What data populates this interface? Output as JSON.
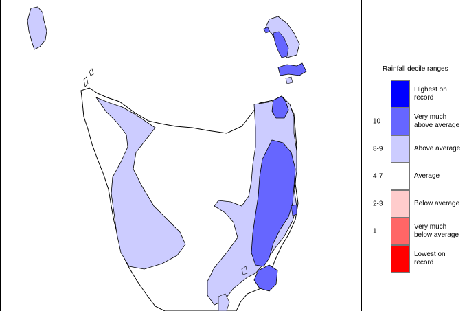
{
  "legend": {
    "title": "Rainfall decile ranges",
    "items": [
      {
        "range": "",
        "label": "Highest on record",
        "color": "#0000ff"
      },
      {
        "range": "10",
        "label": "Very much above average",
        "color": "#6666ff"
      },
      {
        "range": "8-9",
        "label": "Above average",
        "color": "#ccccff"
      },
      {
        "range": "4-7",
        "label": "Average",
        "color": "#ffffff"
      },
      {
        "range": "2-3",
        "label": "Below average",
        "color": "#ffcccc"
      },
      {
        "range": "1",
        "label": "Very much below average",
        "color": "#ff6666"
      },
      {
        "range": "",
        "label": "Lowest on record",
        "color": "#ff0000"
      }
    ]
  },
  "map_colors": {
    "above_average": "#ccccff",
    "very_much_above_average": "#6666ff",
    "average": "#ffffff",
    "coastline": "#000000"
  }
}
